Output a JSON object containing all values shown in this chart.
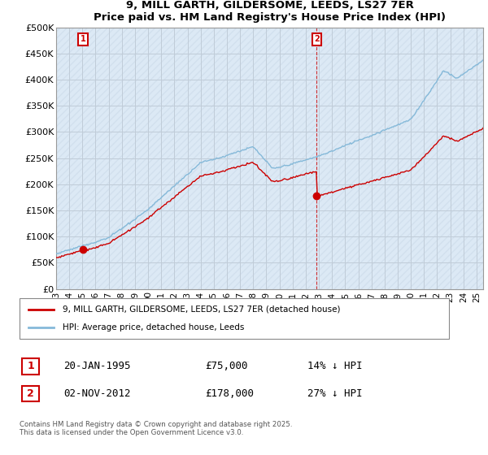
{
  "title": "9, MILL GARTH, GILDERSOME, LEEDS, LS27 7ER",
  "subtitle": "Price paid vs. HM Land Registry's House Price Index (HPI)",
  "ylabel_ticks": [
    0,
    50000,
    100000,
    150000,
    200000,
    250000,
    300000,
    350000,
    400000,
    450000,
    500000
  ],
  "ylabel_labels": [
    "£0",
    "£50K",
    "£100K",
    "£150K",
    "£200K",
    "£250K",
    "£300K",
    "£350K",
    "£400K",
    "£450K",
    "£500K"
  ],
  "ylim": [
    0,
    500000
  ],
  "xlim_left": 1993.0,
  "xlim_right": 2025.5,
  "sale1_x": 1995.05,
  "sale1_y": 75000,
  "sale2_x": 2012.84,
  "sale2_y": 178000,
  "sale1_label": "1",
  "sale2_label": "2",
  "sale_color": "#cc0000",
  "hpi_color": "#85b9d9",
  "plot_bg_color": "#dce9f5",
  "legend_house": "9, MILL GARTH, GILDERSOME, LEEDS, LS27 7ER (detached house)",
  "legend_hpi": "HPI: Average price, detached house, Leeds",
  "note1_box": "1",
  "note1_date": "20-JAN-1995",
  "note1_price": "£75,000",
  "note1_hpi": "14% ↓ HPI",
  "note2_box": "2",
  "note2_date": "02-NOV-2012",
  "note2_price": "£178,000",
  "note2_hpi": "27% ↓ HPI",
  "copyright": "Contains HM Land Registry data © Crown copyright and database right 2025.\nThis data is licensed under the Open Government Licence v3.0.",
  "background_color": "#ffffff",
  "grid_color": "#c0ccd8",
  "hatch_color": "#c8d8e8"
}
